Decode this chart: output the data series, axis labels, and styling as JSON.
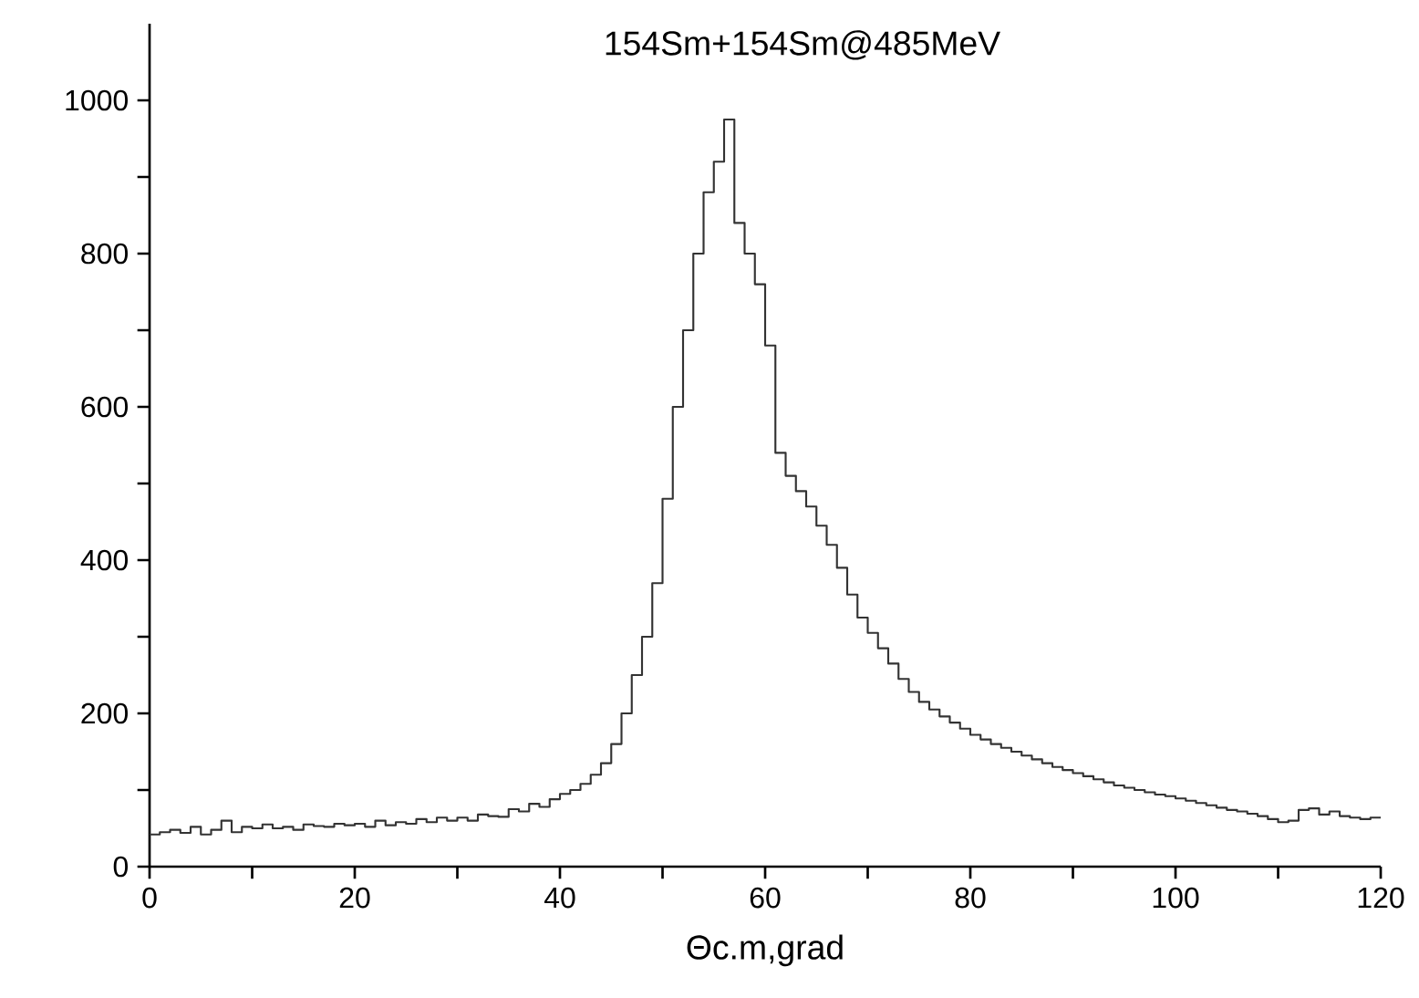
{
  "chart_data": {
    "type": "histogram",
    "title": "154Sm+154Sm@485MeV",
    "xlabel": "Θc.m,grad",
    "bins": [
      0,
      1,
      2,
      3,
      4,
      5,
      6,
      7,
      8,
      9,
      10,
      11,
      12,
      13,
      14,
      15,
      16,
      17,
      18,
      19,
      20,
      21,
      22,
      23,
      24,
      25,
      26,
      27,
      28,
      29,
      30,
      31,
      32,
      33,
      34,
      35,
      36,
      37,
      38,
      39,
      40,
      41,
      42,
      43,
      44,
      45,
      46,
      47,
      48,
      49,
      50,
      51,
      52,
      53,
      54,
      55,
      56,
      57,
      58,
      59,
      60,
      61,
      62,
      63,
      64,
      65,
      66,
      67,
      68,
      69,
      70,
      71,
      72,
      73,
      74,
      75,
      76,
      77,
      78,
      79,
      80,
      81,
      82,
      83,
      84,
      85,
      86,
      87,
      88,
      89,
      90,
      91,
      92,
      93,
      94,
      95,
      96,
      97,
      98,
      99,
      100,
      101,
      102,
      103,
      104,
      105,
      106,
      107,
      108,
      109,
      110,
      111,
      112,
      113,
      114,
      115,
      116,
      117,
      118,
      119,
      120
    ],
    "values": [
      42,
      45,
      48,
      44,
      52,
      42,
      48,
      60,
      45,
      52,
      50,
      55,
      50,
      52,
      48,
      55,
      53,
      52,
      56,
      54,
      56,
      52,
      60,
      54,
      58,
      56,
      62,
      58,
      64,
      60,
      64,
      60,
      68,
      66,
      65,
      75,
      72,
      82,
      78,
      88,
      95,
      100,
      108,
      120,
      135,
      160,
      200,
      250,
      300,
      370,
      480,
      600,
      700,
      800,
      880,
      920,
      975,
      840,
      800,
      760,
      680,
      540,
      510,
      490,
      470,
      445,
      420,
      390,
      355,
      325,
      305,
      285,
      265,
      245,
      228,
      215,
      205,
      196,
      188,
      180,
      172,
      166,
      160,
      155,
      150,
      145,
      140,
      135,
      130,
      126,
      122,
      118,
      114,
      110,
      106,
      103,
      100,
      97,
      94,
      92,
      89,
      86,
      83,
      80,
      77,
      74,
      72,
      69,
      66,
      62,
      58,
      60,
      74,
      76,
      68,
      72,
      66,
      64,
      62,
      64
    ],
    "color": "#333333",
    "xlim": [
      0,
      120
    ],
    "ylim": [
      0,
      1100
    ],
    "xticks": [
      0,
      {
        "value": 10,
        "label": null
      },
      20,
      {
        "value": 30,
        "label": null
      },
      40,
      {
        "value": 50,
        "label": null
      },
      60,
      {
        "value": 70,
        "label": null
      },
      80,
      {
        "value": 90,
        "label": null
      },
      100,
      {
        "value": 110,
        "label": null
      },
      120
    ],
    "yticks": [
      0,
      {
        "value": 100,
        "label": null
      },
      200,
      {
        "value": 300,
        "label": null
      },
      400,
      {
        "value": 500,
        "label": null
      },
      600,
      {
        "value": 700,
        "label": null
      },
      800,
      {
        "value": 900,
        "label": null
      },
      1000
    ],
    "grid": false
  }
}
